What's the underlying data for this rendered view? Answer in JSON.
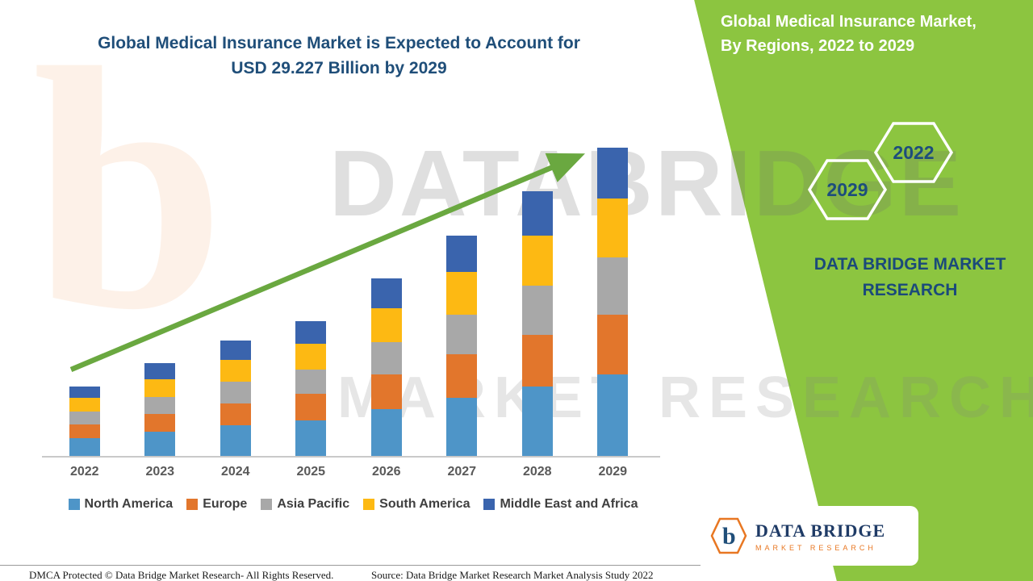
{
  "title": {
    "line1": "Global Medical Insurance Market is Expected to Account for",
    "line2": "USD 29.227 Billion by 2029"
  },
  "side_panel": {
    "panel_color": "#8cc540",
    "heading_line1": "Global Medical Insurance Market,",
    "heading_line2": "By Regions, 2022 to 2029",
    "hexagons": [
      "2029",
      "2022"
    ],
    "brand_line1": "DATA BRIDGE MARKET",
    "brand_line2": "RESEARCH"
  },
  "chart_data": {
    "type": "bar",
    "stacked": true,
    "title": "Global Medical Insurance Market is Expected to Account for USD 29.227 Billion by 2029",
    "xlabel": "",
    "ylabel": "",
    "units_hint": "USD Billion (estimated from bar heights; no y-axis shown)",
    "grid": false,
    "legend_position": "bottom",
    "categories": [
      "2022",
      "2023",
      "2024",
      "2025",
      "2026",
      "2027",
      "2028",
      "2029"
    ],
    "series": [
      {
        "name": "North America",
        "color": "#4e95c8",
        "values": [
          1.7,
          2.3,
          2.9,
          3.4,
          4.4,
          5.5,
          6.6,
          7.7
        ]
      },
      {
        "name": "Europe",
        "color": "#e2762c",
        "values": [
          1.3,
          1.7,
          2.1,
          2.5,
          3.3,
          4.1,
          4.9,
          5.7
        ]
      },
      {
        "name": "Asia Pacific",
        "color": "#a8a8a8",
        "values": [
          1.2,
          1.6,
          2.0,
          2.3,
          3.1,
          3.8,
          4.6,
          5.4
        ]
      },
      {
        "name": "South America",
        "color": "#fdb913",
        "values": [
          1.3,
          1.7,
          2.1,
          2.4,
          3.2,
          4.0,
          4.8,
          5.6
        ]
      },
      {
        "name": "Middle East and Africa",
        "color": "#3a64ad",
        "values": [
          1.1,
          1.5,
          1.8,
          2.2,
          2.8,
          3.5,
          4.2,
          4.8
        ]
      }
    ],
    "totals_estimated": [
      6.6,
      8.8,
      10.9,
      12.8,
      16.8,
      20.9,
      25.1,
      29.2
    ],
    "annotations": [
      "upward green trend arrow across bars"
    ]
  },
  "watermark": {
    "logo_glyph": "b",
    "line1": "DATABRIDGE",
    "line2": "MARKET RESEARCH"
  },
  "footer": {
    "left": "DMCA Protected © Data Bridge Market Research- All Rights Reserved.",
    "source": "Source: Data Bridge Market Research Market Analysis Study 2022"
  },
  "logo_card": {
    "glyph": "b",
    "brand": "DATA BRIDGE",
    "sub": "MARKET RESEARCH"
  },
  "colors": {
    "title_blue": "#1f4e79",
    "arrow_green": "#6aa840",
    "panel_green": "#8cc540"
  }
}
